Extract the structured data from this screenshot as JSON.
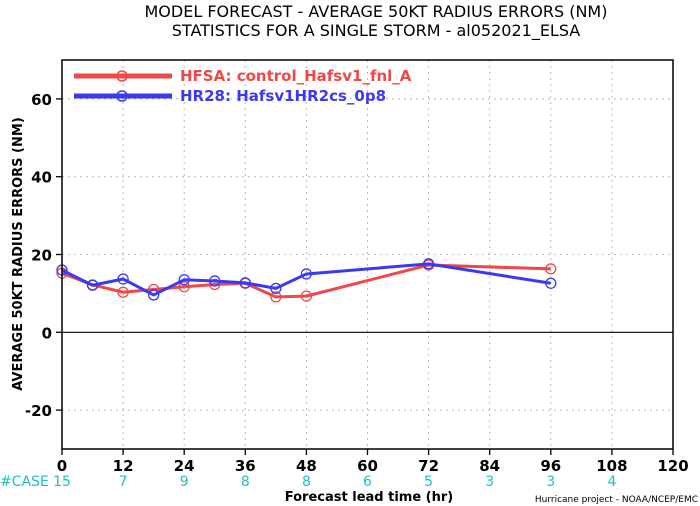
{
  "title_line1": "MODEL FORECAST - AVERAGE 50KT RADIUS ERRORS (NM)",
  "title_line2": "STATISTICS FOR A SINGLE STORM - al052021_ELSA",
  "credit": "Hurricane project - NOAA/NCEP/EMC",
  "case_label": "#CASE",
  "chart_data": {
    "type": "line",
    "xlabel": "Forecast lead time (hr)",
    "ylabel": "AVERAGE 50KT RADIUS ERRORS (NM)",
    "xlim": [
      0,
      120
    ],
    "ylim": [
      -30,
      70
    ],
    "x_ticks": [
      0,
      12,
      24,
      36,
      48,
      60,
      72,
      84,
      96,
      108,
      120
    ],
    "y_ticks": [
      -20,
      0,
      20,
      40,
      60
    ],
    "grid": true,
    "legend_position": "top-left",
    "series": [
      {
        "name": "HFSA: control_Hafsv1_fnl_A",
        "color": "#f04848",
        "x": [
          0,
          6,
          12,
          18,
          24,
          30,
          36,
          42,
          48,
          72,
          96
        ],
        "y": [
          15.2,
          12.2,
          10.3,
          11.0,
          11.7,
          12.3,
          12.6,
          9.1,
          9.3,
          17.3,
          16.3
        ]
      },
      {
        "name": "HR28: Hafsv1HR2cs_0p8",
        "color": "#3a3af0",
        "x": [
          0,
          6,
          12,
          18,
          24,
          30,
          36,
          42,
          48,
          72,
          96
        ],
        "y": [
          16.0,
          12.1,
          13.7,
          9.6,
          13.5,
          13.2,
          12.7,
          11.3,
          15.0,
          17.6,
          12.6
        ]
      }
    ],
    "cases": [
      {
        "x": 0,
        "count": "15"
      },
      {
        "x": 12,
        "count": "7"
      },
      {
        "x": 24,
        "count": "9"
      },
      {
        "x": 36,
        "count": "8"
      },
      {
        "x": 48,
        "count": "8"
      },
      {
        "x": 60,
        "count": "6"
      },
      {
        "x": 72,
        "count": "5"
      },
      {
        "x": 84,
        "count": "3"
      },
      {
        "x": 96,
        "count": "3"
      },
      {
        "x": 108,
        "count": "4"
      }
    ]
  }
}
